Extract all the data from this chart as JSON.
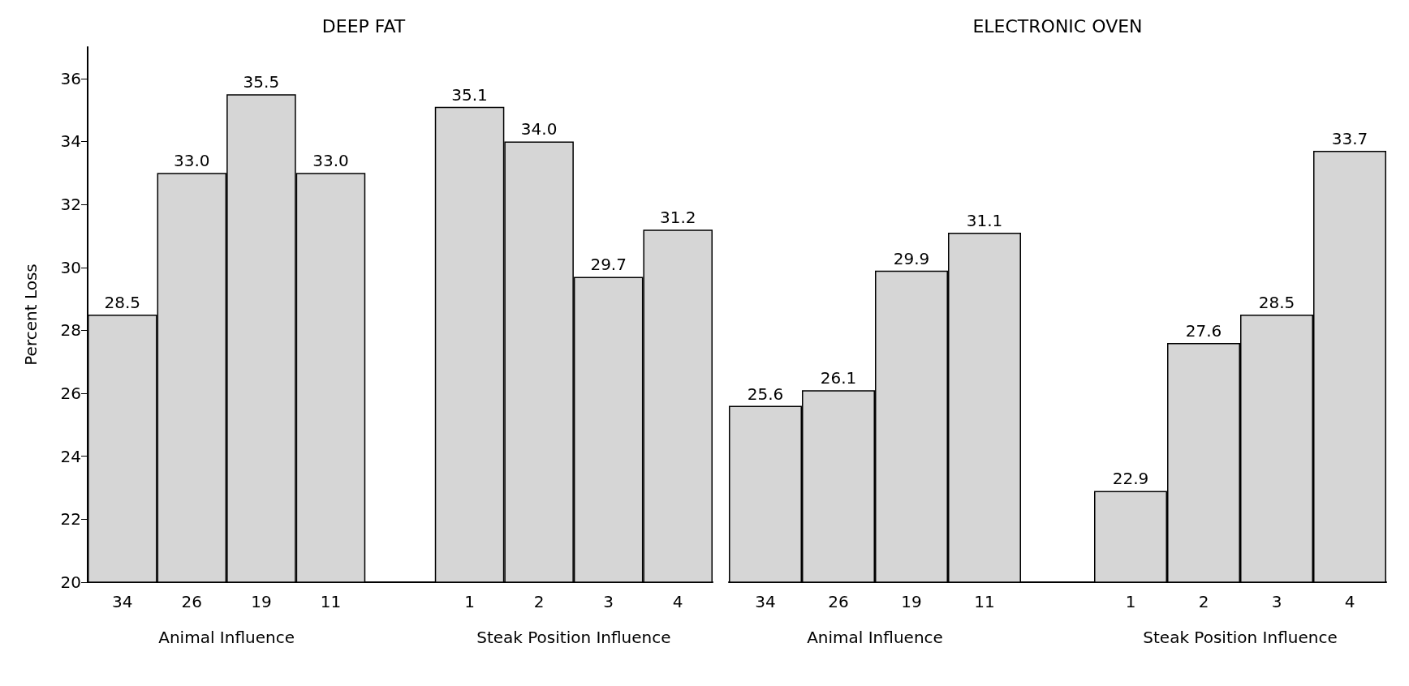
{
  "chart_data": [
    {
      "type": "bar",
      "title": "DEEP FAT",
      "ylabel": "Percent Loss",
      "categories": [
        "34",
        "26",
        "19",
        "11",
        null,
        "1",
        "2",
        "3",
        "4"
      ],
      "values": [
        28.5,
        33.0,
        35.5,
        33.0,
        null,
        35.1,
        34.0,
        29.7,
        31.2
      ],
      "value_labels": [
        "28.5",
        "33.0",
        "35.5",
        "33.0",
        null,
        "35.1",
        "34.0",
        "29.7",
        "31.2"
      ],
      "color": "#d6d6d6",
      "ylim": [
        20,
        37
      ],
      "yticks": [
        20,
        22,
        24,
        26,
        28,
        30,
        32,
        34,
        36
      ],
      "annotations": [
        "Animal Influence",
        "Steak Position Influence"
      ]
    },
    {
      "type": "bar",
      "title": "ELECTRONIC OVEN",
      "categories": [
        "34",
        "26",
        "19",
        "11",
        null,
        "1",
        "2",
        "3",
        "4"
      ],
      "values": [
        25.6,
        26.1,
        29.9,
        31.1,
        null,
        22.9,
        27.6,
        28.5,
        33.7
      ],
      "value_labels": [
        "25.6",
        "26.1",
        "29.9",
        "31.1",
        null,
        "22.9",
        "27.6",
        "28.5",
        "33.7"
      ],
      "color": "#d6d6d6",
      "ylim": [
        20,
        36
      ],
      "yticks": [
        20,
        22,
        24,
        26,
        28,
        30,
        32,
        34,
        36
      ],
      "tick_labels": "x",
      "annotations": [
        "Animal Influence",
        "Steak Position Influence"
      ]
    }
  ]
}
